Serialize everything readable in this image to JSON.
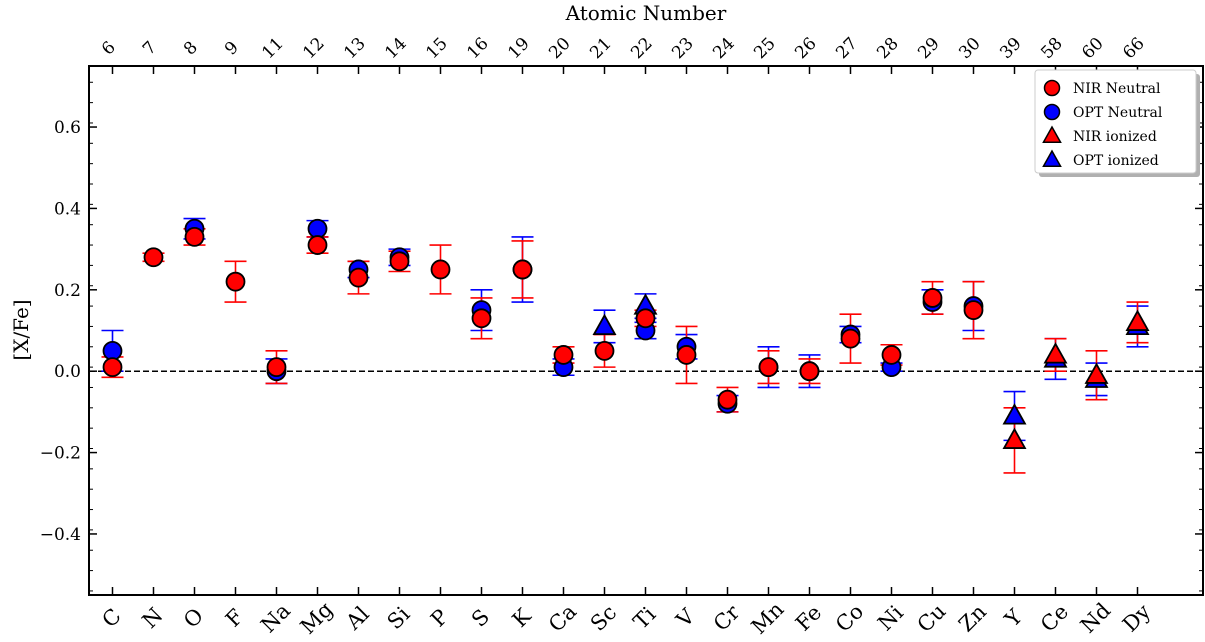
{
  "chart_data": {
    "type": "scatter",
    "title": "",
    "top_axis_label": "Atomic Number",
    "xlabel": "",
    "ylabel": "[X/Fe]",
    "ylim": [
      -0.55,
      0.75
    ],
    "y_ticks": [
      -0.4,
      -0.2,
      0.0,
      0.2,
      0.4,
      0.6
    ],
    "y_tick_labels": [
      "−0.4",
      "−0.2",
      "0.0",
      "0.2",
      "0.4",
      "0.6"
    ],
    "reference_line": {
      "y": 0.0,
      "style": "dashed",
      "color": "#000000"
    },
    "grid": false,
    "legend_position": "top-right",
    "elements": [
      "C",
      "N",
      "O",
      "F",
      "Na",
      "Mg",
      "Al",
      "Si",
      "P",
      "S",
      "K",
      "Ca",
      "Sc",
      "Ti",
      "V",
      "Cr",
      "Mn",
      "Fe",
      "Co",
      "Ni",
      "Cu",
      "Zn",
      "Y",
      "Ce",
      "Nd",
      "Dy"
    ],
    "atomic_numbers": [
      "6",
      "7",
      "8",
      "9",
      "11",
      "12",
      "13",
      "14",
      "15",
      "16",
      "19",
      "20",
      "21",
      "22",
      "23",
      "24",
      "25",
      "26",
      "27",
      "28",
      "29",
      "30",
      "39",
      "58",
      "60",
      "66"
    ],
    "series": [
      {
        "name": "OPT Neutral",
        "marker": "circle",
        "color": "#0000ff",
        "errorbar_color": "#0000ff",
        "points": [
          {
            "element": "C",
            "y": 0.05,
            "err": 0.05
          },
          {
            "element": "O",
            "y": 0.35,
            "err": 0.025
          },
          {
            "element": "Na",
            "y": 0.0,
            "err": 0.03
          },
          {
            "element": "Mg",
            "y": 0.35,
            "err": 0.02
          },
          {
            "element": "Al",
            "y": 0.25,
            "err": 0.02
          },
          {
            "element": "Si",
            "y": 0.28,
            "err": 0.02
          },
          {
            "element": "S",
            "y": 0.15,
            "err": 0.05
          },
          {
            "element": "K",
            "y": 0.25,
            "err": 0.08
          },
          {
            "element": "Ca",
            "y": 0.01,
            "err": 0.02
          },
          {
            "element": "Ti",
            "y": 0.1,
            "err": 0.02
          },
          {
            "element": "V",
            "y": 0.06,
            "err": 0.03
          },
          {
            "element": "Cr",
            "y": -0.08,
            "err": 0.02
          },
          {
            "element": "Mn",
            "y": 0.01,
            "err": 0.05
          },
          {
            "element": "Fe",
            "y": 0.0,
            "err": 0.04
          },
          {
            "element": "Co",
            "y": 0.09,
            "err": 0.02
          },
          {
            "element": "Ni",
            "y": 0.01,
            "err": 0.01
          },
          {
            "element": "Cu",
            "y": 0.17,
            "err": 0.03
          },
          {
            "element": "Zn",
            "y": 0.16,
            "err": 0.06
          }
        ]
      },
      {
        "name": "OPT ionized",
        "marker": "triangle",
        "color": "#0000ff",
        "errorbar_color": "#0000ff",
        "points": [
          {
            "element": "Sc",
            "y": 0.11,
            "err": 0.04
          },
          {
            "element": "Ti",
            "y": 0.16,
            "err": 0.03
          },
          {
            "element": "Y",
            "y": -0.11,
            "err": 0.06
          },
          {
            "element": "Ce",
            "y": 0.03,
            "err": 0.05
          },
          {
            "element": "Nd",
            "y": -0.02,
            "err": 0.04
          },
          {
            "element": "Dy",
            "y": 0.11,
            "err": 0.05
          }
        ]
      },
      {
        "name": "NIR Neutral",
        "marker": "circle",
        "color": "#ff0000",
        "errorbar_color": "#ff0000",
        "points": [
          {
            "element": "C",
            "y": 0.01,
            "err": 0.025
          },
          {
            "element": "N",
            "y": 0.28,
            "err": 0.01
          },
          {
            "element": "O",
            "y": 0.33,
            "err": 0.02
          },
          {
            "element": "F",
            "y": 0.22,
            "err": 0.05
          },
          {
            "element": "Na",
            "y": 0.01,
            "err": 0.04
          },
          {
            "element": "Mg",
            "y": 0.31,
            "err": 0.02
          },
          {
            "element": "Al",
            "y": 0.23,
            "err": 0.04
          },
          {
            "element": "Si",
            "y": 0.27,
            "err": 0.025
          },
          {
            "element": "P",
            "y": 0.25,
            "err": 0.06
          },
          {
            "element": "S",
            "y": 0.13,
            "err": 0.05
          },
          {
            "element": "K",
            "y": 0.25,
            "err": 0.07
          },
          {
            "element": "Ca",
            "y": 0.04,
            "err": 0.02
          },
          {
            "element": "Sc",
            "y": 0.05,
            "err": 0.04
          },
          {
            "element": "Ti",
            "y": 0.13,
            "err": 0.02
          },
          {
            "element": "V",
            "y": 0.04,
            "err": 0.07
          },
          {
            "element": "Cr",
            "y": -0.07,
            "err": 0.03
          },
          {
            "element": "Mn",
            "y": 0.01,
            "err": 0.04
          },
          {
            "element": "Fe",
            "y": 0.0,
            "err": 0.03
          },
          {
            "element": "Co",
            "y": 0.08,
            "err": 0.06
          },
          {
            "element": "Ni",
            "y": 0.04,
            "err": 0.025
          },
          {
            "element": "Cu",
            "y": 0.18,
            "err": 0.04
          },
          {
            "element": "Zn",
            "y": 0.15,
            "err": 0.07
          }
        ]
      },
      {
        "name": "NIR ionized",
        "marker": "triangle",
        "color": "#ff0000",
        "errorbar_color": "#ff0000",
        "points": [
          {
            "element": "Y",
            "y": -0.17,
            "err": 0.08
          },
          {
            "element": "Ce",
            "y": 0.04,
            "err": 0.04
          },
          {
            "element": "Nd",
            "y": -0.01,
            "err": 0.06
          },
          {
            "element": "Dy",
            "y": 0.12,
            "err": 0.05
          }
        ]
      }
    ]
  },
  "legend": {
    "items": [
      {
        "label": "NIR Neutral",
        "marker": "circle",
        "color": "#ff0000"
      },
      {
        "label": "OPT Neutral",
        "marker": "circle",
        "color": "#0000ff"
      },
      {
        "label": "NIR ionized",
        "marker": "triangle",
        "color": "#ff0000"
      },
      {
        "label": "OPT ionized",
        "marker": "triangle",
        "color": "#0000ff"
      }
    ]
  }
}
